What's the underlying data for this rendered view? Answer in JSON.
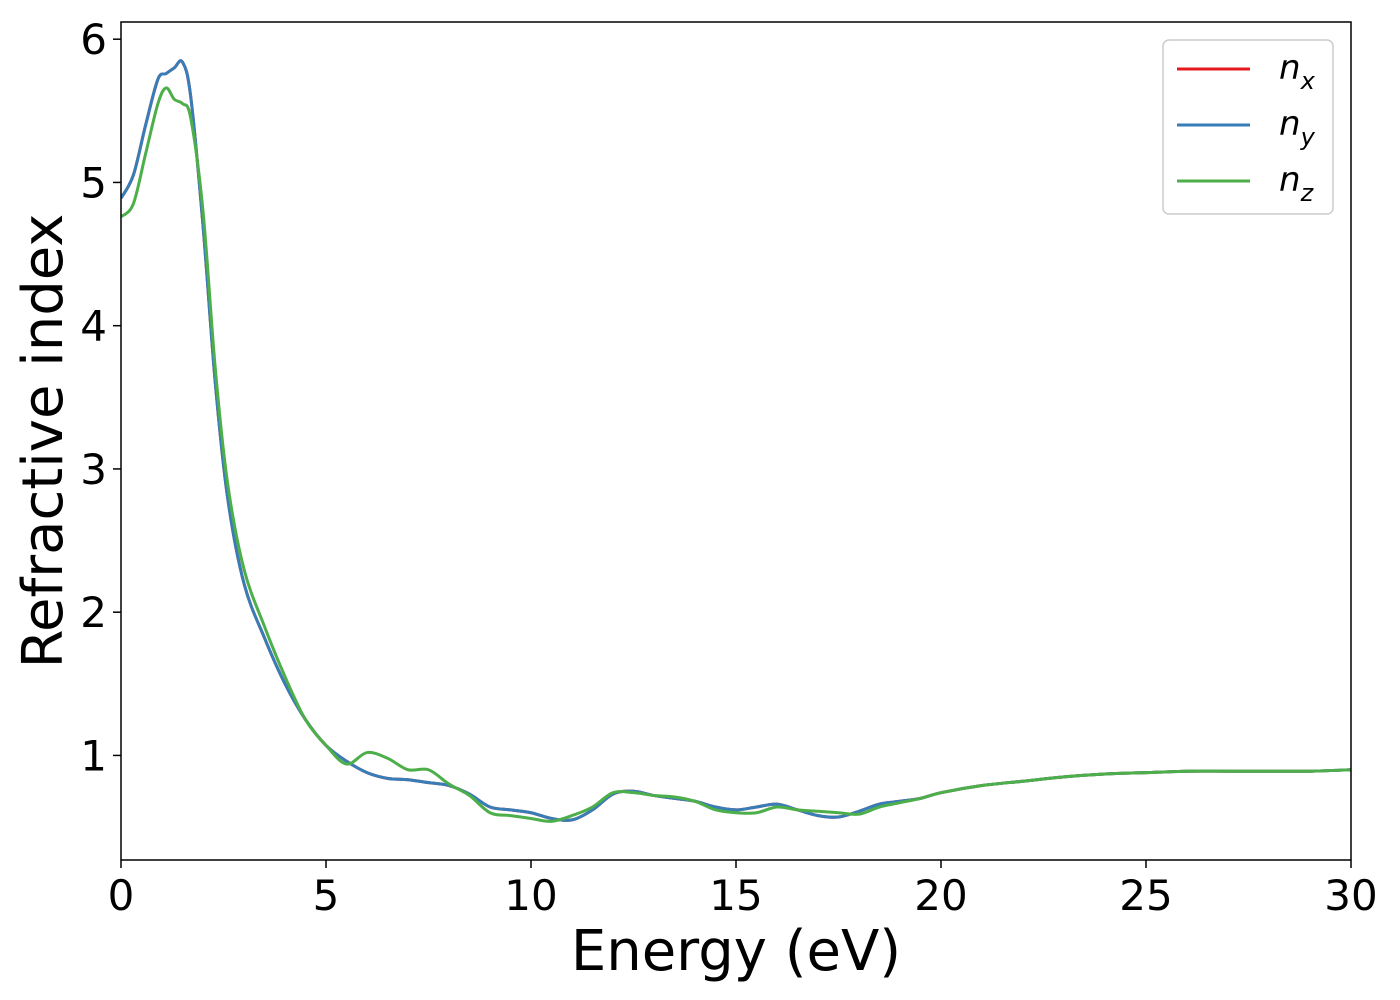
{
  "chart_data": {
    "type": "line",
    "xlabel": "Energy (eV)",
    "ylabel": "Refractive index",
    "xlim": [
      0,
      30
    ],
    "ylim": [
      0.27,
      6.12
    ],
    "xticks": [
      0,
      5,
      10,
      15,
      20,
      25,
      30
    ],
    "xtick_labels": [
      "0",
      "5",
      "10",
      "15",
      "20",
      "25",
      "30"
    ],
    "yticks": [
      1,
      2,
      3,
      4,
      5,
      6
    ],
    "ytick_labels": [
      "1",
      "2",
      "3",
      "4",
      "5",
      "6"
    ],
    "grid": false,
    "legend_position": "top-right",
    "x": [
      0,
      0.3,
      0.6,
      0.9,
      1.1,
      1.3,
      1.5,
      1.7,
      2.0,
      2.3,
      2.6,
      3.0,
      3.5,
      4.0,
      4.5,
      5.0,
      5.5,
      6.0,
      6.5,
      7.0,
      7.5,
      8.0,
      8.5,
      9.0,
      9.5,
      10.0,
      10.5,
      11.0,
      11.5,
      12.0,
      12.5,
      13.0,
      13.5,
      14.0,
      14.5,
      15.0,
      15.5,
      16.0,
      16.5,
      17.0,
      17.5,
      18.0,
      18.5,
      19.0,
      19.5,
      20.0,
      21.0,
      22.0,
      23.0,
      24.0,
      25.0,
      26.0,
      27.0,
      28.0,
      29.0,
      30.0
    ],
    "series": [
      {
        "name": "n",
        "subscript": "x",
        "color": "#e41a1c",
        "values": [
          4.89,
          5.05,
          5.4,
          5.72,
          5.76,
          5.8,
          5.84,
          5.6,
          4.7,
          3.6,
          2.8,
          2.2,
          1.82,
          1.5,
          1.25,
          1.07,
          0.96,
          0.88,
          0.84,
          0.83,
          0.81,
          0.79,
          0.73,
          0.64,
          0.62,
          0.6,
          0.56,
          0.55,
          0.62,
          0.73,
          0.75,
          0.72,
          0.7,
          0.68,
          0.64,
          0.62,
          0.64,
          0.66,
          0.62,
          0.58,
          0.57,
          0.61,
          0.66,
          0.68,
          0.7,
          0.74,
          0.79,
          0.82,
          0.85,
          0.87,
          0.88,
          0.89,
          0.89,
          0.89,
          0.89,
          0.9
        ]
      },
      {
        "name": "n",
        "subscript": "y",
        "color": "#377eb8",
        "values": [
          4.89,
          5.05,
          5.4,
          5.72,
          5.76,
          5.8,
          5.84,
          5.6,
          4.7,
          3.6,
          2.8,
          2.2,
          1.82,
          1.5,
          1.25,
          1.07,
          0.96,
          0.88,
          0.84,
          0.83,
          0.81,
          0.79,
          0.73,
          0.64,
          0.62,
          0.6,
          0.56,
          0.55,
          0.62,
          0.73,
          0.75,
          0.72,
          0.7,
          0.68,
          0.64,
          0.62,
          0.64,
          0.66,
          0.62,
          0.58,
          0.57,
          0.61,
          0.66,
          0.68,
          0.7,
          0.74,
          0.79,
          0.82,
          0.85,
          0.87,
          0.88,
          0.89,
          0.89,
          0.89,
          0.89,
          0.9
        ]
      },
      {
        "name": "n",
        "subscript": "z",
        "color": "#4daf4a",
        "values": [
          4.76,
          4.85,
          5.2,
          5.55,
          5.66,
          5.58,
          5.55,
          5.45,
          4.8,
          3.7,
          2.9,
          2.3,
          1.9,
          1.55,
          1.25,
          1.07,
          0.94,
          1.02,
          0.98,
          0.9,
          0.9,
          0.8,
          0.72,
          0.6,
          0.58,
          0.56,
          0.54,
          0.58,
          0.64,
          0.74,
          0.74,
          0.72,
          0.71,
          0.68,
          0.62,
          0.6,
          0.6,
          0.64,
          0.62,
          0.61,
          0.6,
          0.59,
          0.64,
          0.67,
          0.7,
          0.74,
          0.79,
          0.82,
          0.85,
          0.87,
          0.88,
          0.89,
          0.89,
          0.89,
          0.89,
          0.9
        ]
      }
    ]
  }
}
